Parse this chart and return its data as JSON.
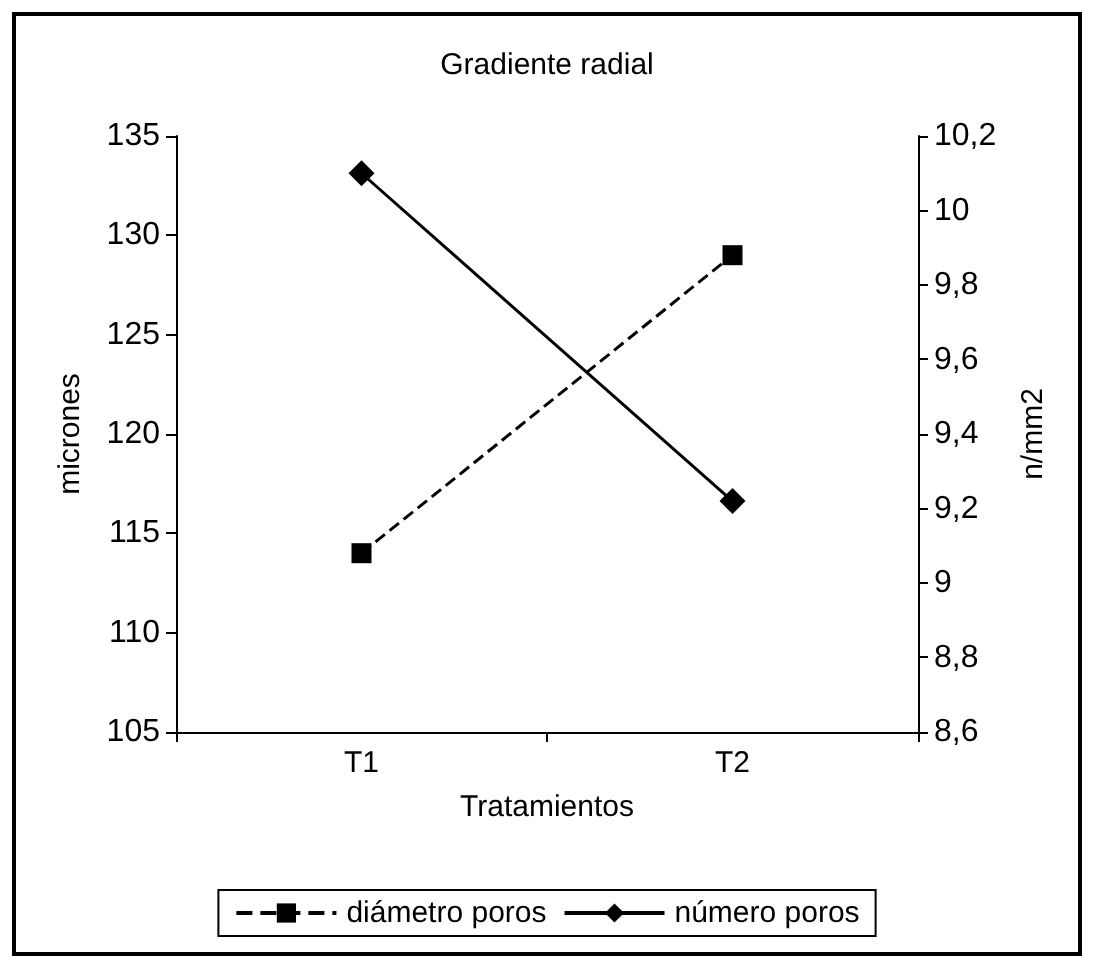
{
  "chart_data": {
    "type": "line",
    "title": "Gradiente radial",
    "xlabel": "Tratamientos",
    "ylabel": "micrones",
    "y2label": "n/mm2",
    "categories": [
      "T1",
      "T2"
    ],
    "series": [
      {
        "name": "diámetro poros",
        "color": "#000000",
        "values": [
          114,
          129
        ],
        "marker": "square",
        "line_style": "dashed"
      },
      {
        "name": "número poros",
        "color": "#000000",
        "values": [
          10.1,
          9.22
        ],
        "marker": "diamond",
        "line_style": "solid",
        "axis": "y2"
      }
    ],
    "ylim": [
      105,
      135
    ],
    "yticks": [
      105,
      110,
      115,
      120,
      125,
      130,
      135
    ],
    "y2lim": [
      8.6,
      10.2
    ],
    "y2ticks": [
      {
        "value": 8.6,
        "label": "8,6"
      },
      {
        "value": 8.8,
        "label": "8,8"
      },
      {
        "value": 9,
        "label": "9"
      },
      {
        "value": 9.2,
        "label": "9,2"
      },
      {
        "value": 9.4,
        "label": "9,4"
      },
      {
        "value": 9.6,
        "label": "9,6"
      },
      {
        "value": 9.8,
        "label": "9,8"
      },
      {
        "value": 10,
        "label": "10"
      },
      {
        "value": 10.2,
        "label": "10,2"
      }
    ],
    "grid": false,
    "legend": "bottom"
  }
}
